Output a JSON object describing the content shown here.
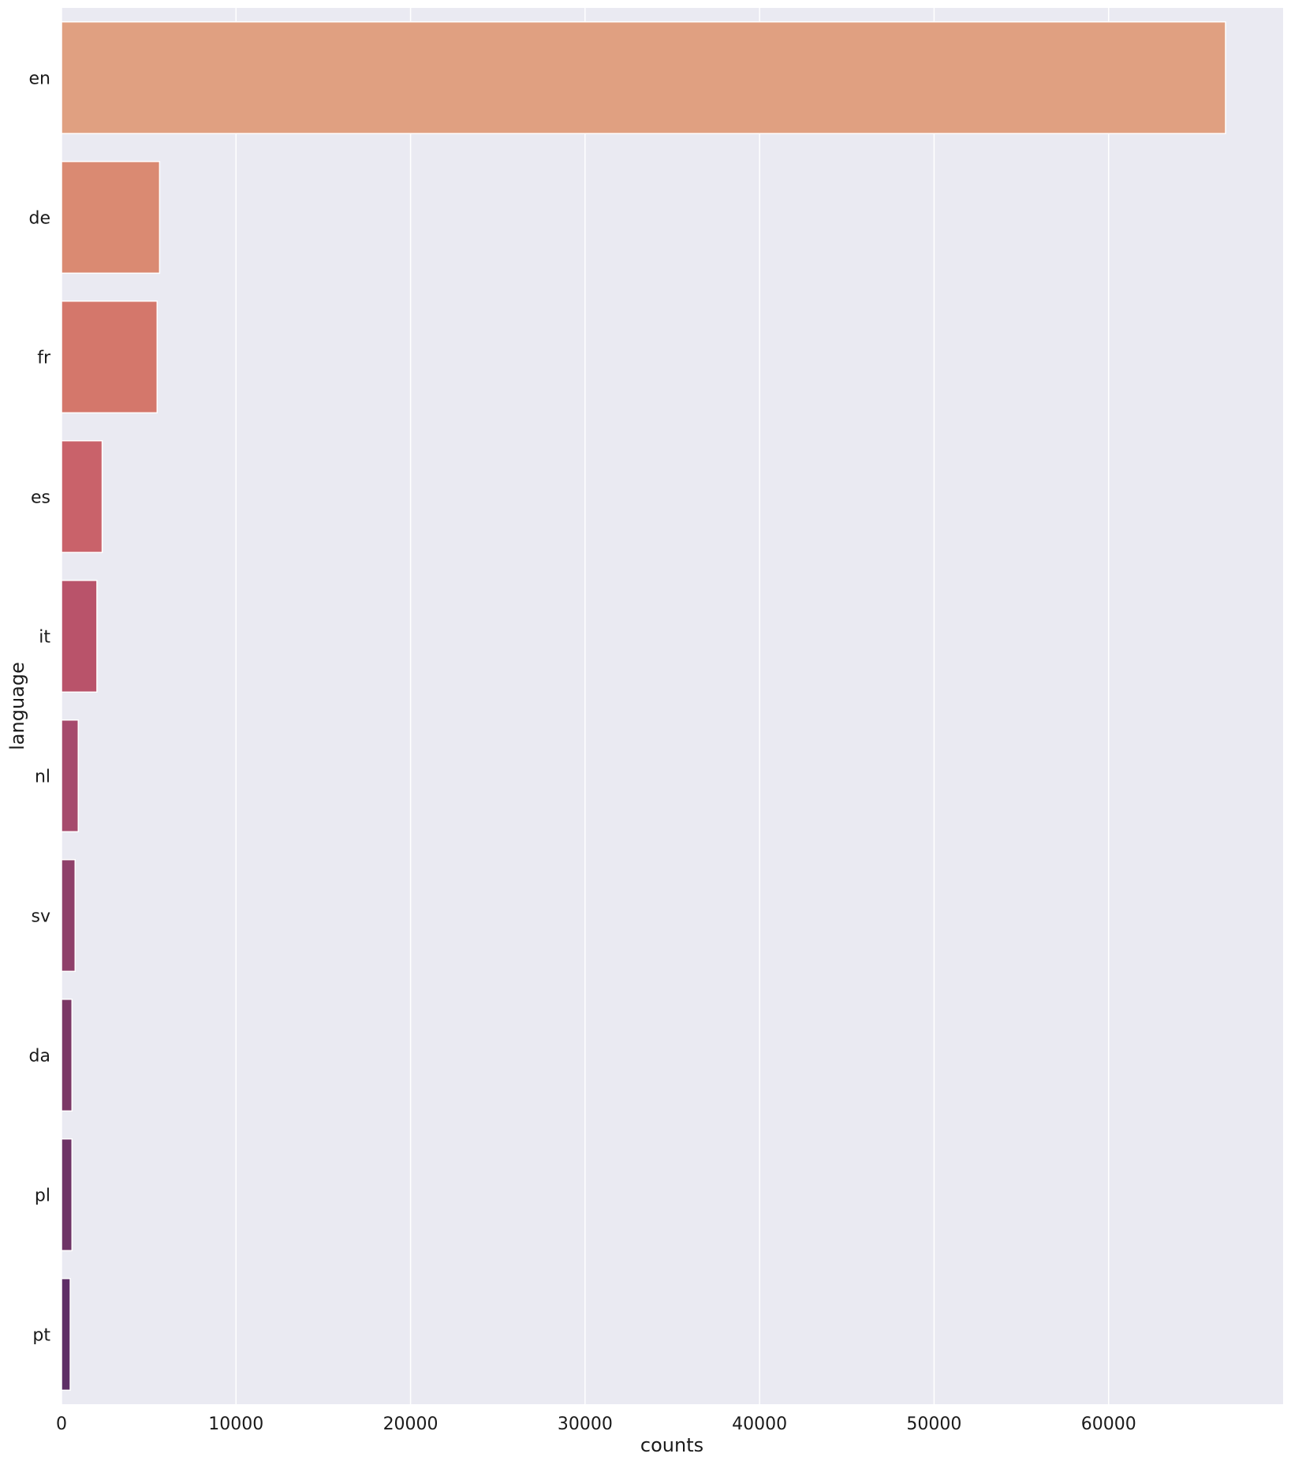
{
  "chart_data": {
    "type": "bar",
    "orientation": "horizontal",
    "categories": [
      "en",
      "de",
      "fr",
      "es",
      "it",
      "nl",
      "sv",
      "da",
      "pl",
      "pt"
    ],
    "values": [
      66700,
      5620,
      5480,
      2330,
      2030,
      960,
      780,
      600,
      600,
      500
    ],
    "colors": [
      "#e0a081",
      "#da8a72",
      "#d4776b",
      "#c9626a",
      "#b9536a",
      "#a64a6c",
      "#8f406a",
      "#7b3766",
      "#6e3366",
      "#5e2e66"
    ],
    "xlabel": "counts",
    "ylabel": "language",
    "xlim": [
      0,
      70000
    ],
    "xticks": [
      0,
      10000,
      20000,
      30000,
      40000,
      50000,
      60000
    ],
    "grid": true,
    "background": "#eaeaf2",
    "grid_color": "#ffffff"
  }
}
